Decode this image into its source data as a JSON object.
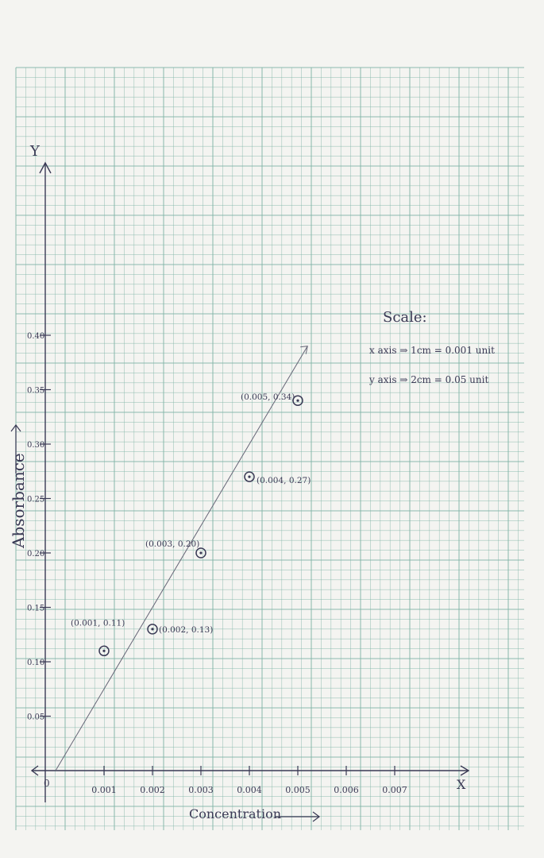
{
  "chart_data": {
    "type": "scatter",
    "title": "",
    "xlabel": "Concentration",
    "ylabel": "Absorbance",
    "x_axis_letter": "X",
    "y_axis_letter": "Y",
    "origin_label": "0",
    "xlim": [
      0,
      0.0078
    ],
    "ylim": [
      0,
      0.44
    ],
    "grid": true,
    "x_ticks": [
      "0.001",
      "0.002",
      "0.003",
      "0.004",
      "0.005",
      "0.006",
      "0.007"
    ],
    "y_ticks": [
      "0.05",
      "0.10",
      "0.15",
      "0.20",
      "0.25",
      "0.30",
      "0.35",
      "0.40"
    ],
    "points": [
      {
        "x": 0.001,
        "y": 0.11,
        "label": "(0.001, 0.11)"
      },
      {
        "x": 0.002,
        "y": 0.13,
        "label": "(0.002, 0.13)"
      },
      {
        "x": 0.003,
        "y": 0.2,
        "label": "(0.003, 0.20)"
      },
      {
        "x": 0.004,
        "y": 0.27,
        "label": "(0.004, 0.27)"
      },
      {
        "x": 0.005,
        "y": 0.34,
        "label": "(0.005, 0.34)"
      }
    ],
    "fit_line": {
      "x": [
        0,
        0.0052
      ],
      "y": [
        0,
        0.39
      ]
    },
    "scale_note": {
      "heading": "Scale:",
      "x_line": "x axis ⇒ 1cm = 0.001 unit",
      "y_line": "y axis ⇒ 2cm = 0.05 unit"
    },
    "colors": {
      "grid": "#7fb3a6",
      "ink": "#3a3a55",
      "paper": "#f4f4f1"
    }
  }
}
